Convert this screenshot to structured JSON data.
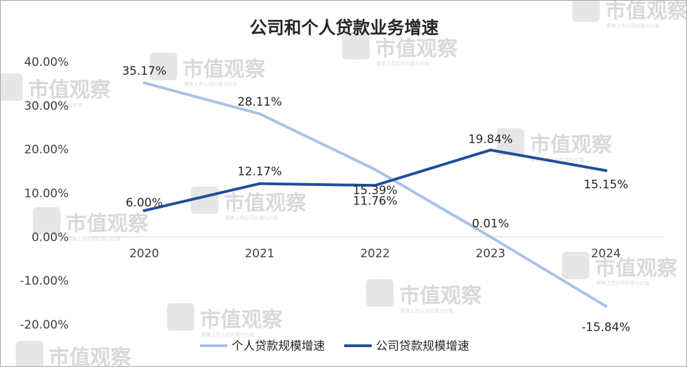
{
  "chart_data": {
    "type": "line",
    "title": "公司和个人贷款业务增速",
    "categories": [
      "2020",
      "2021",
      "2022",
      "2023",
      "2024"
    ],
    "ylim": [
      -0.2,
      0.4
    ],
    "yticks": [
      0.4,
      0.3,
      0.2,
      0.1,
      0.0,
      -0.1,
      -0.2
    ],
    "ytick_labels": [
      "40.00%",
      "30.00%",
      "20.00%",
      "10.00%",
      "0.00%",
      "-10.00%",
      "-20.00%"
    ],
    "grid": false,
    "legend_position": "bottom",
    "series": [
      {
        "name": "个人贷款规模增速",
        "color": "#a9c1e8",
        "values": [
          0.3517,
          0.2811,
          0.1539,
          0.0001,
          -0.1584
        ],
        "labels": [
          "35.17%",
          "28.11%",
          "15.39%",
          "0.01%",
          "-15.84%"
        ]
      },
      {
        "name": "公司贷款规模增速",
        "color": "#1f4e9c",
        "values": [
          0.06,
          0.1217,
          0.1176,
          0.1984,
          0.1515
        ],
        "labels": [
          "6.00%",
          "12.17%",
          "11.76%",
          "19.84%",
          "15.15%"
        ]
      }
    ]
  },
  "watermark": {
    "text": "市值观察",
    "subtext": "聚焦上市公司价值与价值"
  }
}
